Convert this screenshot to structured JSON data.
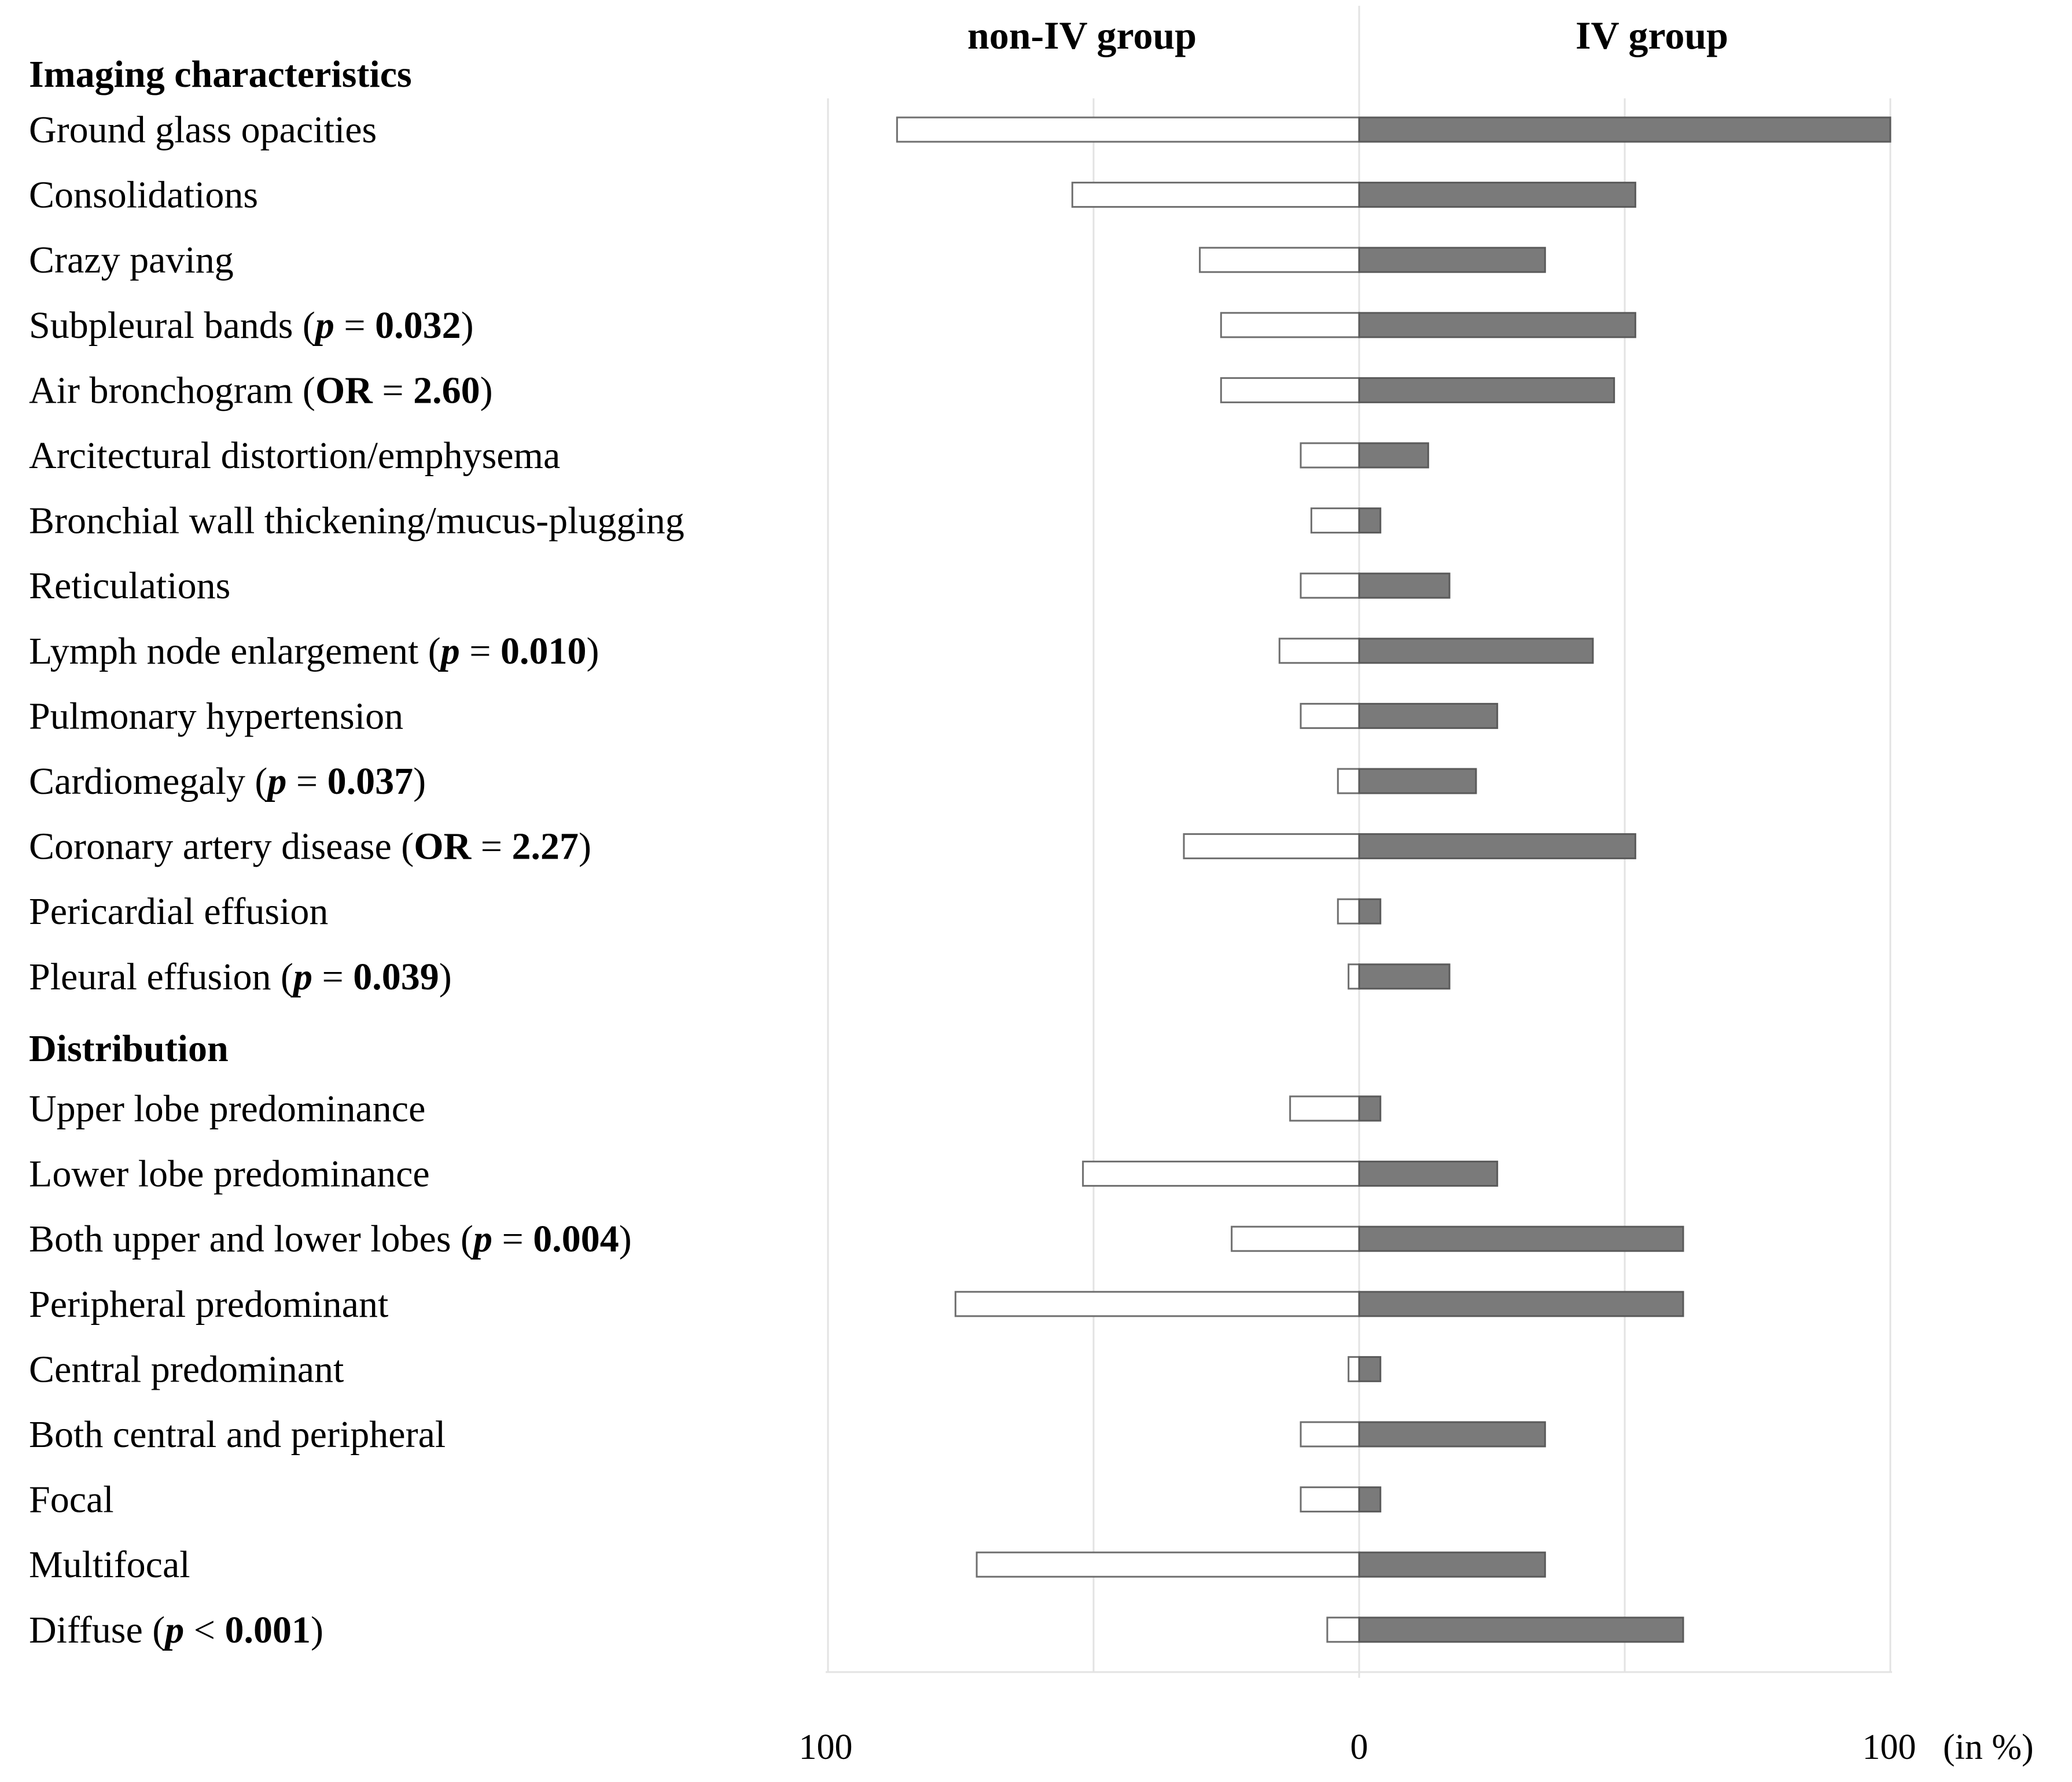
{
  "chart_data": {
    "type": "bar",
    "orientation": "horizontal-diverging",
    "series": [
      {
        "name": "non-IV group",
        "color": "#ffffff",
        "side": "left"
      },
      {
        "name": "IV group",
        "color": "#7a7a7a",
        "side": "right"
      }
    ],
    "header_left": "non-IV group",
    "header_right": "IV group",
    "x_ticks": [
      "100",
      "0",
      "100"
    ],
    "x_unit": "(in %)",
    "xlim": [
      -100,
      100
    ],
    "sections": [
      {
        "title": "Imaging characteristics",
        "rows": [
          {
            "label": "Ground glass opacities",
            "suffix": "",
            "non_iv": 87,
            "iv": 100
          },
          {
            "label": "Consolidations",
            "suffix": "",
            "non_iv": 54,
            "iv": 52
          },
          {
            "label": "Crazy paving",
            "suffix": "",
            "non_iv": 30,
            "iv": 35
          },
          {
            "label": "Subpleural bands",
            "suffix": "p = 0.032",
            "stat": "p",
            "stat_value": "0.032",
            "non_iv": 26,
            "iv": 52
          },
          {
            "label": "Air bronchogram",
            "suffix": "OR = 2.60",
            "stat": "OR",
            "stat_value": "2.60",
            "non_iv": 26,
            "iv": 48
          },
          {
            "label": "Arcitectural distortion/emphysema",
            "suffix": "",
            "non_iv": 11,
            "iv": 13
          },
          {
            "label": "Bronchial wall thickening/mucus-plugging",
            "suffix": "",
            "non_iv": 9,
            "iv": 4
          },
          {
            "label": "Reticulations",
            "suffix": "",
            "non_iv": 11,
            "iv": 17
          },
          {
            "label": "Lymph node enlargement",
            "suffix": "p = 0.010",
            "stat": "p",
            "stat_value": "0.010",
            "non_iv": 15,
            "iv": 44
          },
          {
            "label": "Pulmonary hypertension",
            "suffix": "",
            "non_iv": 11,
            "iv": 26
          },
          {
            "label": "Cardiomegaly",
            "suffix": "p = 0.037",
            "stat": "p",
            "stat_value": "0.037",
            "non_iv": 4,
            "iv": 22
          },
          {
            "label": "Coronary artery disease",
            "suffix": "OR = 2.27",
            "stat": "OR",
            "stat_value": "2.27",
            "non_iv": 33,
            "iv": 52
          },
          {
            "label": "Pericardial effusion",
            "suffix": "",
            "non_iv": 4,
            "iv": 4
          },
          {
            "label": "Pleural effusion",
            "suffix": "p = 0.039",
            "stat": "p",
            "stat_value": "0.039",
            "non_iv": 2,
            "iv": 17
          }
        ]
      },
      {
        "title": "Distribution",
        "rows": [
          {
            "label": "Upper lobe predominance",
            "suffix": "",
            "non_iv": 13,
            "iv": 4
          },
          {
            "label": "Lower lobe predominance",
            "suffix": "",
            "non_iv": 52,
            "iv": 26
          },
          {
            "label": "Both upper and lower lobes",
            "suffix": "p = 0.004",
            "stat": "p",
            "stat_value": "0.004",
            "non_iv": 24,
            "iv": 61
          },
          {
            "label": "Peripheral predominant",
            "suffix": "",
            "non_iv": 76,
            "iv": 61
          },
          {
            "label": "Central predominant",
            "suffix": "",
            "non_iv": 2,
            "iv": 4
          },
          {
            "label": "Both central and peripheral",
            "suffix": "",
            "non_iv": 11,
            "iv": 35
          },
          {
            "label": "Focal",
            "suffix": "",
            "non_iv": 11,
            "iv": 4
          },
          {
            "label": "Multifocal",
            "suffix": "",
            "non_iv": 72,
            "iv": 35
          },
          {
            "label": "Diffuse",
            "suffix": "p < 0.001",
            "stat": "p",
            "stat_op": "<",
            "stat_value": "0.001",
            "non_iv": 6,
            "iv": 61
          }
        ]
      }
    ]
  }
}
